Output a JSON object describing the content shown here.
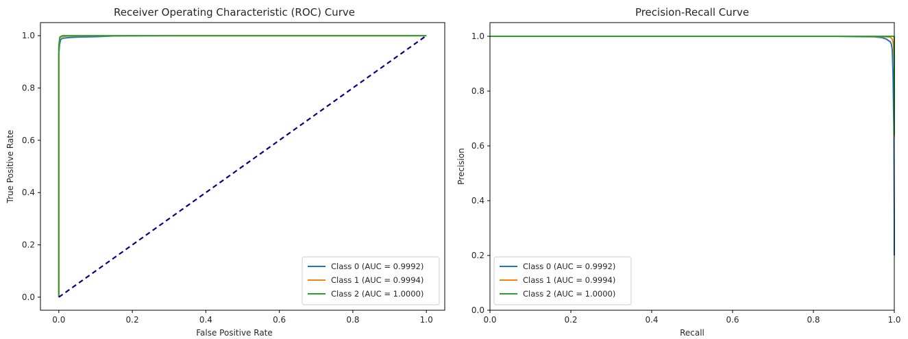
{
  "chart_data": [
    {
      "type": "line",
      "title": "Receiver Operating Characteristic (ROC) Curve",
      "xlabel": "False Positive Rate",
      "ylabel": "True Positive Rate",
      "xlim": [
        -0.05,
        1.05
      ],
      "ylim": [
        -0.05,
        1.05
      ],
      "xticks": [
        "0.0",
        "0.2",
        "0.4",
        "0.6",
        "0.8",
        "1.0"
      ],
      "yticks": [
        "0.0",
        "0.2",
        "0.4",
        "0.6",
        "0.8",
        "1.0"
      ],
      "grid": false,
      "legend_position": "lower-right",
      "series": [
        {
          "name": "Class 0 (AUC = 0.9992)",
          "color": "#1f77b4",
          "x": [
            0,
            0,
            0.002,
            0.005,
            0.01,
            0.03,
            0.06,
            0.1,
            0.15,
            0.3,
            0.6,
            1.0
          ],
          "y": [
            0,
            0.93,
            0.965,
            0.985,
            0.99,
            0.993,
            0.995,
            0.996,
            0.999,
            1.0,
            1.0,
            1.0
          ]
        },
        {
          "name": "Class 1 (AUC = 0.9994)",
          "color": "#ff7f0e",
          "x": [
            0,
            0,
            0.002,
            0.005,
            0.01,
            0.03,
            0.1,
            1.0
          ],
          "y": [
            0,
            0.95,
            0.99,
            0.995,
            0.997,
            0.999,
            1.0,
            1.0
          ]
        },
        {
          "name": "Class 2 (AUC = 1.0000)",
          "color": "#2ca02c",
          "x": [
            0,
            0,
            0.003,
            0.01,
            1.0
          ],
          "y": [
            0,
            0.96,
            0.995,
            1.0,
            1.0
          ]
        },
        {
          "name": "",
          "color": "#000080",
          "dashed": true,
          "x": [
            0,
            1
          ],
          "y": [
            0,
            1
          ]
        }
      ]
    },
    {
      "type": "line",
      "title": "Precision-Recall Curve",
      "xlabel": "Recall",
      "ylabel": "Precision",
      "xlim": [
        0,
        1
      ],
      "ylim": [
        0,
        1.05
      ],
      "xticks": [
        "0.0",
        "0.2",
        "0.4",
        "0.6",
        "0.8",
        "1.0"
      ],
      "yticks": [
        "0.0",
        "0.2",
        "0.4",
        "0.6",
        "0.8",
        "1.0"
      ],
      "grid": false,
      "legend_position": "lower-left",
      "series": [
        {
          "name": "Class 0 (AUC = 0.9992)",
          "color": "#1f77b4",
          "x": [
            0,
            0.85,
            0.95,
            0.97,
            0.98,
            0.985,
            0.99,
            0.993,
            0.995,
            0.997,
            0.998,
            0.999,
            1.0,
            1.0
          ],
          "y": [
            1.0,
            1.0,
            0.998,
            0.995,
            0.99,
            0.985,
            0.98,
            0.97,
            0.95,
            0.85,
            0.75,
            0.67,
            0.3,
            0.2
          ]
        },
        {
          "name": "Class 1 (AUC = 0.9994)",
          "color": "#ff7f0e",
          "x": [
            0,
            0.9,
            0.97,
            0.99,
            0.995,
            0.998,
            1.0,
            1.0
          ],
          "y": [
            1.0,
            1.0,
            0.999,
            0.997,
            0.99,
            0.97,
            0.9,
            0.63
          ]
        },
        {
          "name": "Class 2 (AUC = 1.0000)",
          "color": "#2ca02c",
          "x": [
            0,
            0.98,
            0.995,
            1.0,
            1.0
          ],
          "y": [
            1.0,
            1.0,
            1.0,
            0.999,
            0.64
          ]
        }
      ]
    }
  ]
}
